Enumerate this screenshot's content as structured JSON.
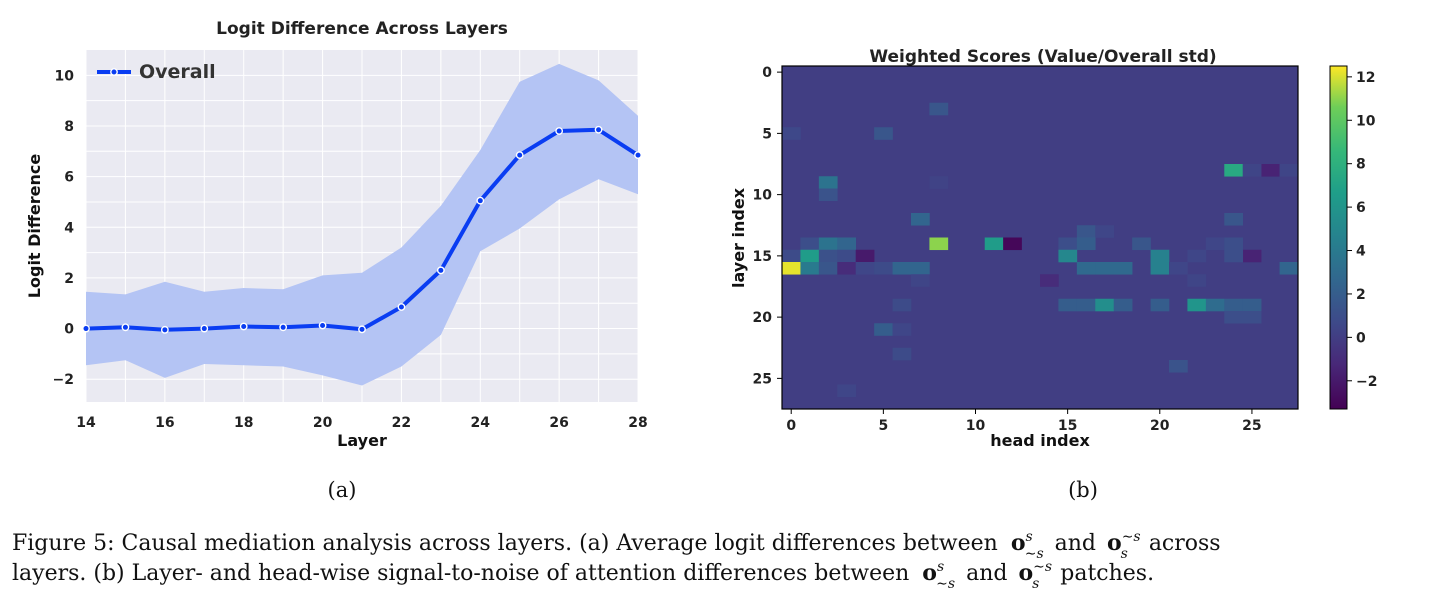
{
  "chart_data": [
    {
      "type": "line",
      "title": "Logit Difference Across Layers",
      "xlabel": "Layer",
      "ylabel": "Logit Difference",
      "xlim": [
        14,
        28
      ],
      "ylim": [
        -2.9,
        11.0
      ],
      "xticks": [
        14,
        16,
        18,
        20,
        22,
        24,
        26,
        28
      ],
      "yticks": [
        -2,
        0,
        2,
        4,
        6,
        8,
        10
      ],
      "grid": true,
      "legend": "top-left",
      "series": [
        {
          "name": "Overall",
          "color": "#0a3df2",
          "band_color": "#b4c4f4",
          "x": [
            14,
            15,
            16,
            17,
            18,
            19,
            20,
            21,
            22,
            23,
            24,
            25,
            26,
            27,
            28
          ],
          "y": [
            0.0,
            0.05,
            -0.05,
            0.0,
            0.08,
            0.05,
            0.12,
            -0.03,
            0.85,
            2.3,
            5.05,
            6.85,
            7.8,
            7.85,
            6.85
          ],
          "upper": [
            1.45,
            1.35,
            1.85,
            1.45,
            1.6,
            1.55,
            2.1,
            2.2,
            3.2,
            4.85,
            7.05,
            9.75,
            10.45,
            9.8,
            8.4
          ],
          "lower": [
            -1.45,
            -1.25,
            -1.95,
            -1.4,
            -1.45,
            -1.5,
            -1.85,
            -2.25,
            -1.5,
            -0.25,
            3.05,
            3.95,
            5.1,
            5.9,
            5.3
          ]
        }
      ],
      "sublabel": "(a)"
    },
    {
      "type": "heatmap",
      "title": "Weighted Scores (Value/Overall std)",
      "xlabel": "head index",
      "ylabel": "layer index",
      "rows": 28,
      "cols": 28,
      "background_value": 0.0,
      "xticks": [
        0,
        5,
        10,
        15,
        20,
        25
      ],
      "yticks": [
        0,
        5,
        10,
        15,
        20,
        25
      ],
      "colorbar_range": [
        -3.3,
        12.5
      ],
      "colorbar_ticks": [
        -2,
        0,
        2,
        4,
        6,
        8,
        10,
        12
      ],
      "colormap": "viridis",
      "cells": [
        [
          3,
          8,
          1.5
        ],
        [
          5,
          0,
          0.6
        ],
        [
          5,
          5,
          1.5
        ],
        [
          8,
          24,
          7.5
        ],
        [
          8,
          26,
          -1.5
        ],
        [
          8,
          27,
          0.4
        ],
        [
          8,
          25,
          0.4
        ],
        [
          9,
          2,
          3.5
        ],
        [
          9,
          8,
          0.3
        ],
        [
          10,
          2,
          1.3
        ],
        [
          12,
          7,
          2.5
        ],
        [
          12,
          24,
          1.5
        ],
        [
          13,
          16,
          1.5
        ],
        [
          13,
          17,
          0.5
        ],
        [
          14,
          1,
          1.0
        ],
        [
          14,
          2,
          3.5
        ],
        [
          14,
          3,
          2.5
        ],
        [
          14,
          8,
          11.0
        ],
        [
          14,
          11,
          6.5
        ],
        [
          14,
          12,
          -3.0
        ],
        [
          14,
          15,
          1.0
        ],
        [
          14,
          16,
          2.0
        ],
        [
          14,
          19,
          1.5
        ],
        [
          14,
          23,
          0.5
        ],
        [
          14,
          24,
          1.0
        ],
        [
          15,
          0,
          0.8
        ],
        [
          15,
          1,
          6.5
        ],
        [
          15,
          2,
          1.2
        ],
        [
          15,
          3,
          0.8
        ],
        [
          15,
          4,
          -2.0
        ],
        [
          15,
          15,
          5.0
        ],
        [
          15,
          20,
          4.5
        ],
        [
          15,
          25,
          -1.5
        ],
        [
          15,
          24,
          1.0
        ],
        [
          15,
          22,
          0.5
        ],
        [
          16,
          0,
          12.2
        ],
        [
          16,
          1,
          4.0
        ],
        [
          16,
          2,
          1.5
        ],
        [
          16,
          3,
          -1.0
        ],
        [
          16,
          4,
          0.5
        ],
        [
          16,
          5,
          0.8
        ],
        [
          16,
          6,
          2.5
        ],
        [
          16,
          7,
          2.5
        ],
        [
          16,
          16,
          2.8
        ],
        [
          16,
          17,
          2.8
        ],
        [
          16,
          18,
          2.8
        ],
        [
          16,
          20,
          4.5
        ],
        [
          16,
          21,
          0.5
        ],
        [
          16,
          27,
          2.5
        ],
        [
          17,
          14,
          -1.0
        ],
        [
          17,
          22,
          0.4
        ],
        [
          17,
          7,
          0.4
        ],
        [
          19,
          6,
          0.8
        ],
        [
          19,
          15,
          2.0
        ],
        [
          19,
          16,
          2.0
        ],
        [
          19,
          17,
          5.5
        ],
        [
          19,
          18,
          2.0
        ],
        [
          19,
          20,
          2.0
        ],
        [
          19,
          22,
          6.0
        ],
        [
          19,
          23,
          3.0
        ],
        [
          19,
          24,
          2.0
        ],
        [
          19,
          25,
          2.0
        ],
        [
          20,
          24,
          1.0
        ],
        [
          20,
          25,
          1.0
        ],
        [
          21,
          5,
          2.0
        ],
        [
          21,
          6,
          0.5
        ],
        [
          23,
          6,
          0.8
        ],
        [
          24,
          21,
          1.3
        ],
        [
          26,
          3,
          0.5
        ]
      ],
      "sublabel": "(b)"
    }
  ],
  "caption": {
    "line1": "Figure 5: Causal mediation analysis across layers. (a) Average logit differences between",
    "line1_mid": "and",
    "line1_end": "across",
    "line2": "layers. (b) Layer- and head-wise signal-to-noise of attention differences between",
    "line2_mid": "and",
    "line2_end": "patches.",
    "sym_o": "o",
    "sup_s": "s",
    "sub_nots": "∼s",
    "sub_s": "s",
    "sup_nots": "∼s"
  }
}
